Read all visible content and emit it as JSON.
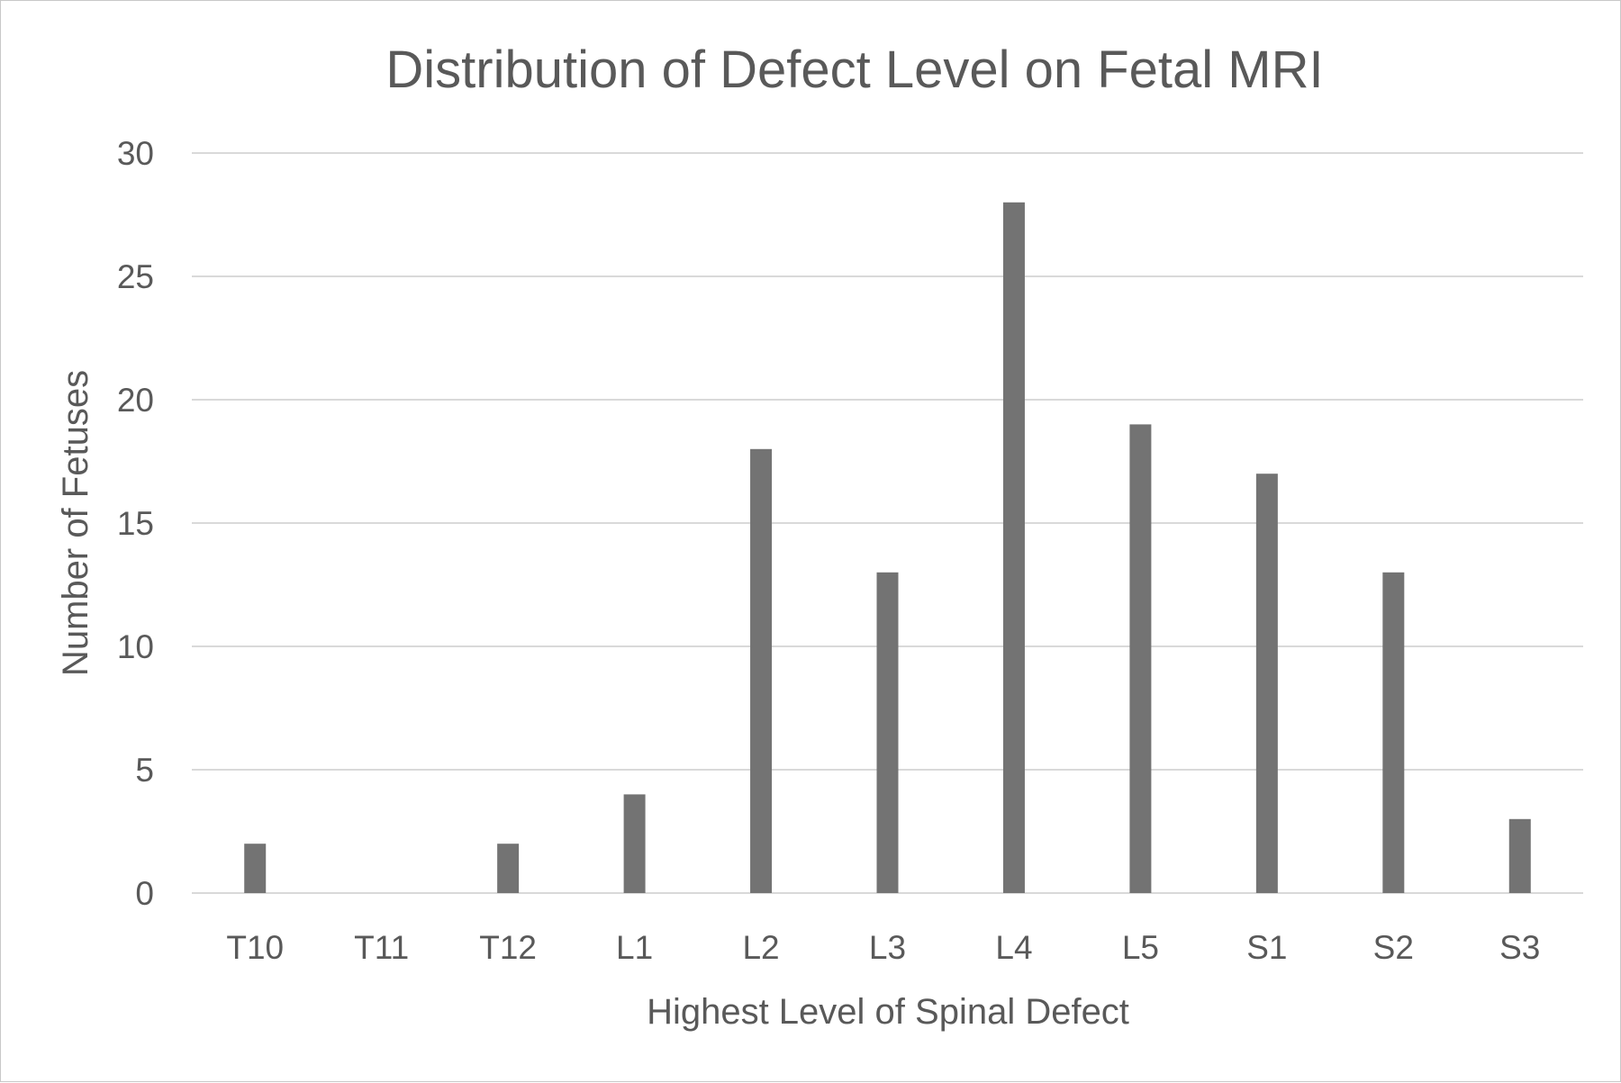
{
  "chart_data": {
    "type": "bar",
    "title": "Distribution of Defect Level on Fetal MRI",
    "xlabel": "Highest Level of Spinal Defect",
    "ylabel": "Number of Fetuses",
    "categories": [
      "T10",
      "T11",
      "T12",
      "L1",
      "L2",
      "L3",
      "L4",
      "L5",
      "S1",
      "S2",
      "S3"
    ],
    "values": [
      2,
      0,
      2,
      4,
      18,
      13,
      28,
      19,
      17,
      13,
      3
    ],
    "ylim": [
      0,
      30
    ],
    "yticks": [
      "0",
      "5",
      "10",
      "15",
      "20",
      "25",
      "30"
    ],
    "grid": true,
    "legend": "none",
    "colors": {
      "bar": "#737373",
      "grid": "#d9d9d9",
      "text": "#595959"
    }
  }
}
